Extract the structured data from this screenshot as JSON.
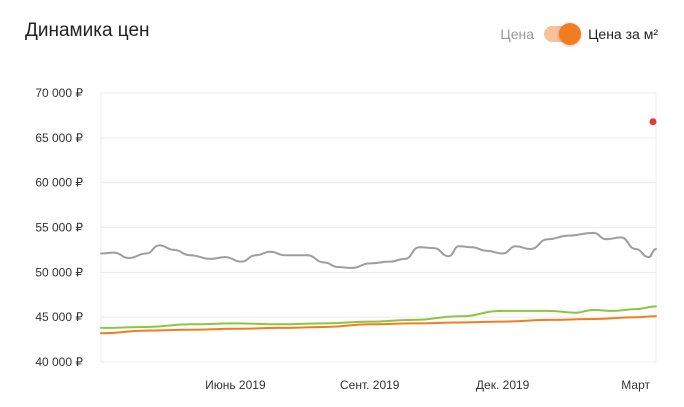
{
  "header": {
    "title": "Динамика цен",
    "toggle_left_label": "Цена",
    "toggle_right_label": "Цена за м²",
    "toggle_state": "right"
  },
  "colors": {
    "gray_series": "#9e9e9e",
    "green_series": "#8cc63f",
    "orange_series": "#f47c20",
    "marker": "#e53935",
    "grid": "#ececec",
    "toggle_knob": "#f47c20",
    "toggle_track": "#f6c39d"
  },
  "chart_data": {
    "type": "line",
    "title": "Динамика цен",
    "xlabel": "",
    "ylabel": "",
    "ylim": [
      40000,
      70000
    ],
    "x_range": [
      "2019-03-01",
      "2020-03-15"
    ],
    "y_ticks": [
      {
        "value": 70000,
        "label": "70 000 ₽"
      },
      {
        "value": 65000,
        "label": "65 000 ₽"
      },
      {
        "value": 60000,
        "label": "60 000 ₽"
      },
      {
        "value": 55000,
        "label": "55 000 ₽"
      },
      {
        "value": 50000,
        "label": "50 000 ₽"
      },
      {
        "value": 45000,
        "label": "45 000 ₽"
      },
      {
        "value": 40000,
        "label": "40 000 ₽"
      }
    ],
    "x_ticks": [
      {
        "date": "2019-06-01",
        "label": "Июнь 2019"
      },
      {
        "date": "2019-09-01",
        "label": "Сент. 2019"
      },
      {
        "date": "2019-12-01",
        "label": "Дек. 2019"
      },
      {
        "date": "2020-03-01",
        "label": "Март"
      }
    ],
    "grid": true,
    "legend": "none",
    "series": [
      {
        "color": "#9e9e9e",
        "points": [
          [
            "2019-03-01",
            52100
          ],
          [
            "2019-03-10",
            52200
          ],
          [
            "2019-03-20",
            51600
          ],
          [
            "2019-04-01",
            52100
          ],
          [
            "2019-04-10",
            53000
          ],
          [
            "2019-04-20",
            52500
          ],
          [
            "2019-05-01",
            51900
          ],
          [
            "2019-05-15",
            51500
          ],
          [
            "2019-05-25",
            51700
          ],
          [
            "2019-06-05",
            51200
          ],
          [
            "2019-06-15",
            51900
          ],
          [
            "2019-06-25",
            52300
          ],
          [
            "2019-07-05",
            51900
          ],
          [
            "2019-07-20",
            51900
          ],
          [
            "2019-08-01",
            51100
          ],
          [
            "2019-08-10",
            50600
          ],
          [
            "2019-08-20",
            50500
          ],
          [
            "2019-09-01",
            51000
          ],
          [
            "2019-09-15",
            51200
          ],
          [
            "2019-09-25",
            51500
          ],
          [
            "2019-10-05",
            52800
          ],
          [
            "2019-10-15",
            52700
          ],
          [
            "2019-10-25",
            51800
          ],
          [
            "2019-11-01",
            52900
          ],
          [
            "2019-11-10",
            52800
          ],
          [
            "2019-11-20",
            52400
          ],
          [
            "2019-12-01",
            52100
          ],
          [
            "2019-12-10",
            52900
          ],
          [
            "2019-12-20",
            52600
          ],
          [
            "2020-01-01",
            53700
          ],
          [
            "2020-01-15",
            54100
          ],
          [
            "2020-02-01",
            54400
          ],
          [
            "2020-02-10",
            53700
          ],
          [
            "2020-02-20",
            53900
          ],
          [
            "2020-03-01",
            52600
          ],
          [
            "2020-03-10",
            51700
          ],
          [
            "2020-03-15",
            52600
          ]
        ]
      },
      {
        "color": "#8cc63f",
        "points": [
          [
            "2019-03-01",
            43800
          ],
          [
            "2019-04-01",
            43900
          ],
          [
            "2019-05-01",
            44200
          ],
          [
            "2019-06-01",
            44300
          ],
          [
            "2019-07-01",
            44200
          ],
          [
            "2019-08-01",
            44300
          ],
          [
            "2019-09-01",
            44500
          ],
          [
            "2019-10-01",
            44700
          ],
          [
            "2019-11-01",
            45100
          ],
          [
            "2019-12-01",
            45700
          ],
          [
            "2020-01-01",
            45700
          ],
          [
            "2020-01-20",
            45500
          ],
          [
            "2020-02-01",
            45800
          ],
          [
            "2020-02-15",
            45700
          ],
          [
            "2020-03-01",
            45900
          ],
          [
            "2020-03-15",
            46200
          ]
        ]
      },
      {
        "color": "#f47c20",
        "points": [
          [
            "2019-03-01",
            43200
          ],
          [
            "2019-04-01",
            43500
          ],
          [
            "2019-05-01",
            43600
          ],
          [
            "2019-06-01",
            43700
          ],
          [
            "2019-07-01",
            43800
          ],
          [
            "2019-08-01",
            43900
          ],
          [
            "2019-09-01",
            44200
          ],
          [
            "2019-10-01",
            44300
          ],
          [
            "2019-11-01",
            44400
          ],
          [
            "2019-12-01",
            44500
          ],
          [
            "2020-01-01",
            44700
          ],
          [
            "2020-02-01",
            44800
          ],
          [
            "2020-03-01",
            45000
          ],
          [
            "2020-03-15",
            45100
          ]
        ]
      }
    ],
    "markers": [
      {
        "date": "2020-03-15",
        "value": 66800,
        "color": "#e53935"
      }
    ]
  }
}
